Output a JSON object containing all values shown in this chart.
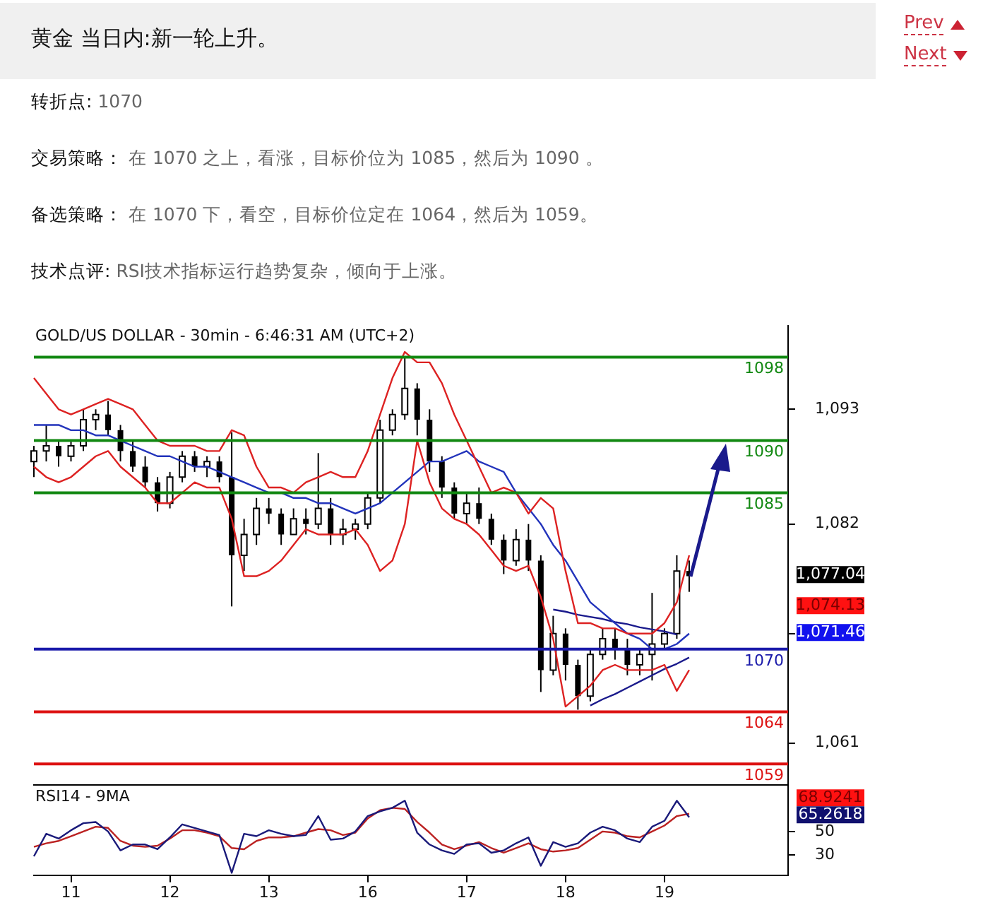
{
  "chart_data": [
    {
      "type": "other",
      "title": "黄金 当日内:新一轮上升。",
      "annotations": [
        "Prev",
        "Next",
        "转折点: 1070",
        "交易策略： 在 1070 之上，看涨，目标价位为 1085，然后为 1090 。",
        "备选策略： 在 1070 下，看空，目标价位定在 1064，然后为 1059。",
        "技术点评: RSI技术指标运行趋势复杂，倾向于上涨。"
      ]
    },
    {
      "type": "candlestick",
      "title": "GOLD/US DOLLAR - 30min - 6:46:31 AM (UTC+2)",
      "categories": [
        null,
        null,
        null,
        "11",
        null,
        null,
        null,
        null,
        null,
        null,
        null,
        "12",
        null,
        null,
        null,
        null,
        null,
        null,
        null,
        "13",
        null,
        null,
        null,
        null,
        null,
        null,
        null,
        "16",
        null,
        null,
        null,
        null,
        null,
        null,
        null,
        "17",
        null,
        null,
        null,
        null,
        null,
        null,
        null,
        "18",
        null,
        null,
        null,
        null,
        null,
        null,
        null,
        "19",
        null,
        null,
        null,
        null,
        null,
        null,
        null,
        null,
        null,
        null
      ],
      "ohlc": [
        [
          1088,
          1089.5,
          1086.5,
          1089
        ],
        [
          1089,
          1091.5,
          1088,
          1089.5
        ],
        [
          1089.5,
          1090,
          1087.5,
          1088.5
        ],
        [
          1088.5,
          1090,
          1088,
          1089.5
        ],
        [
          1089.5,
          1093,
          1089,
          1092
        ],
        [
          1092,
          1093,
          1091,
          1092.5
        ],
        [
          1092.5,
          1093.8,
          1090.5,
          1091
        ],
        [
          1091,
          1091.5,
          1088,
          1089
        ],
        [
          1089,
          1090,
          1087,
          1087.5
        ],
        [
          1087.5,
          1088.5,
          1085.5,
          1086
        ],
        [
          1086,
          1086.5,
          1083.2,
          1084
        ],
        [
          1084,
          1087,
          1083.5,
          1086.5
        ],
        [
          1086.5,
          1089,
          1086,
          1088.5
        ],
        [
          1088.5,
          1089,
          1087,
          1087.5
        ],
        [
          1087.5,
          1088.5,
          1086.5,
          1088
        ],
        [
          1088,
          1088.5,
          1086,
          1086.5
        ],
        [
          1086.5,
          1090.8,
          1074.1,
          1079
        ],
        [
          1079,
          1082.5,
          1077.5,
          1081
        ],
        [
          1081,
          1084.5,
          1080,
          1083.5
        ],
        [
          1083.5,
          1084.5,
          1082,
          1083
        ],
        [
          1083,
          1083.5,
          1080,
          1081
        ],
        [
          1081,
          1083.5,
          1081,
          1082.5
        ],
        [
          1082.5,
          1083.5,
          1081,
          1082
        ],
        [
          1082,
          1088.8,
          1081.5,
          1083.5
        ],
        [
          1083.5,
          1084.5,
          1080,
          1081
        ],
        [
          1081,
          1082.5,
          1080,
          1081.5
        ],
        [
          1081.5,
          1082.5,
          1080.5,
          1082
        ],
        [
          1082,
          1085,
          1081.5,
          1084.5
        ],
        [
          1084.5,
          1092,
          1084,
          1091
        ],
        [
          1091,
          1093,
          1090.5,
          1092.5
        ],
        [
          1092.5,
          1097.9,
          1092,
          1095
        ],
        [
          1095,
          1095.5,
          1090.5,
          1092
        ],
        [
          1092,
          1093,
          1087,
          1088
        ],
        [
          1088,
          1088.5,
          1084.5,
          1085.5
        ],
        [
          1085.5,
          1086,
          1082.5,
          1083
        ],
        [
          1083,
          1085,
          1082,
          1084
        ],
        [
          1084,
          1085.5,
          1082,
          1082.5
        ],
        [
          1082.5,
          1083,
          1080,
          1080.5
        ],
        [
          1080.5,
          1081,
          1077.2,
          1078.5
        ],
        [
          1078.5,
          1081.5,
          1078,
          1080.5
        ],
        [
          1080.5,
          1082,
          1077.5,
          1078.5
        ],
        [
          1078.5,
          1079,
          1065.9,
          1068
        ],
        [
          1068,
          1073.2,
          1067.5,
          1071.5
        ],
        [
          1071.5,
          1072,
          1067,
          1068.5
        ],
        [
          1068.5,
          1069,
          1064.2,
          1065.5
        ],
        [
          1065.5,
          1070,
          1065,
          1069.5
        ],
        [
          1069.5,
          1072,
          1069,
          1071
        ],
        [
          1071,
          1072,
          1069,
          1070
        ],
        [
          1070,
          1071,
          1067.5,
          1068.5
        ],
        [
          1068.5,
          1070,
          1067.5,
          1069.5
        ],
        [
          1069.5,
          1075.4,
          1067,
          1070.5
        ],
        [
          1070.5,
          1072,
          1070,
          1071.5
        ],
        [
          1071.5,
          1079,
          1071,
          1077.5
        ],
        [
          1077.5,
          1078.5,
          1075.5,
          1077
        ],
        null,
        null,
        null,
        null,
        null,
        null,
        null,
        null
      ],
      "series": [
        {
          "type": "line",
          "color": "#dd2222",
          "values": [
            1096,
            1094.5,
            1093,
            1092.5,
            1093,
            1093.5,
            1094,
            1093.5,
            1093,
            1091.5,
            1090,
            1089.5,
            1089.5,
            1089.5,
            1089,
            1089,
            1091,
            1090.5,
            1087.5,
            1085.5,
            1085.5,
            1085,
            1086,
            1086.5,
            1087,
            1086.5,
            1086.5,
            1089,
            1092.5,
            1096,
            1098.5,
            1097.5,
            1097.5,
            1095.5,
            1092.5,
            1090,
            1087.5,
            1085,
            1085.5,
            1085,
            1083,
            1084.5,
            1083.5,
            1077.5,
            1072.5,
            1072.5,
            1072,
            1072,
            1071.5,
            1071.5,
            1071.5,
            1072.5,
            1074.5,
            1079,
            null,
            null,
            null,
            null,
            null,
            null,
            null,
            null
          ]
        },
        {
          "type": "line",
          "color": "#dd2222",
          "values": [
            1087.5,
            1086.5,
            1086,
            1086.5,
            1087.5,
            1088.5,
            1089,
            1087.5,
            1086.5,
            1085.5,
            1084,
            1084,
            1085,
            1086,
            1085.5,
            1085.5,
            1082.5,
            1077,
            1077,
            1077.5,
            1078.5,
            1080,
            1081.5,
            1081,
            1081,
            1081,
            1081.5,
            1080,
            1077.5,
            1078.5,
            1082,
            1090,
            1086,
            1083.5,
            1082.5,
            1082,
            1081,
            1079.5,
            1078,
            1077.5,
            1078,
            1075,
            1071,
            1064.5,
            1065.5,
            1066.5,
            1068,
            1068.5,
            1068,
            1068,
            1068,
            1068.5,
            1066,
            1068,
            null,
            null,
            null,
            null,
            null,
            null,
            null,
            null
          ]
        },
        {
          "type": "line",
          "color": "#2233bb",
          "values": [
            1091.5,
            1091.5,
            1091.5,
            1091,
            1091,
            1090.5,
            1090.5,
            1090,
            1089.5,
            1089,
            1088.5,
            1088.5,
            1088,
            1087.5,
            1087.5,
            1087,
            1086.5,
            1086,
            1085.5,
            1085,
            1085,
            1084.5,
            1084.5,
            1084,
            1084,
            1083.5,
            1083,
            1083.5,
            1084,
            1085,
            1086,
            1087,
            1088,
            1088,
            1088.5,
            1089,
            1088,
            1087.5,
            1087,
            1085,
            1083.5,
            1082,
            1080,
            1078.5,
            1076.5,
            1074.5,
            1073.5,
            1072.5,
            1071.5,
            1071,
            1070,
            1070,
            1070.5,
            1071.5,
            null,
            null,
            null,
            null,
            null,
            null,
            null,
            null
          ]
        },
        {
          "type": "line",
          "color": "#1a1a8c",
          "values": [
            null,
            null,
            null,
            null,
            null,
            null,
            null,
            null,
            null,
            null,
            null,
            null,
            null,
            null,
            null,
            null,
            null,
            null,
            null,
            null,
            null,
            null,
            null,
            null,
            null,
            null,
            null,
            null,
            null,
            null,
            null,
            null,
            null,
            null,
            null,
            null,
            null,
            null,
            null,
            null,
            null,
            null,
            1073.8,
            1073.6,
            1073.3,
            1073.1,
            1072.9,
            1072.6,
            1072.4,
            1072.1,
            1071.9,
            1071.7,
            1071.4,
            null,
            null,
            null,
            null,
            null,
            null,
            null,
            null,
            null
          ]
        },
        {
          "type": "line",
          "color": "#1a1a8c",
          "values": [
            null,
            null,
            null,
            null,
            null,
            null,
            null,
            null,
            null,
            null,
            null,
            null,
            null,
            null,
            null,
            null,
            null,
            null,
            null,
            null,
            null,
            null,
            null,
            null,
            null,
            null,
            null,
            null,
            null,
            null,
            null,
            null,
            null,
            null,
            null,
            null,
            null,
            null,
            null,
            null,
            null,
            null,
            null,
            null,
            null,
            1064.6,
            1065.2,
            1065.7,
            1066.3,
            1066.9,
            1067.5,
            1068.1,
            1068.6,
            1069.2,
            null,
            null,
            null,
            null,
            null,
            null,
            null,
            null
          ]
        }
      ],
      "ylim": [
        1057,
        1101
      ],
      "yticks": [
        {
          "value": 1061,
          "label": "1,061"
        },
        {
          "value": 1071.5,
          "label": null
        },
        {
          "value": 1082,
          "label": "1,082"
        },
        {
          "value": 1093,
          "label": "1,093"
        }
      ],
      "tick_labels": "y",
      "ref_lines": [
        {
          "axis": "y",
          "value": 1098,
          "label": "1098",
          "color": "#118811"
        },
        {
          "axis": "y",
          "value": 1090,
          "label": "1090",
          "color": "#118811"
        },
        {
          "axis": "y",
          "value": 1085,
          "label": "1085",
          "color": "#118811"
        },
        {
          "axis": "y",
          "value": 1070,
          "label": "1070",
          "color": "#1a1aaa"
        },
        {
          "axis": "y",
          "value": 1064,
          "label": "1064",
          "color": "#dd1111"
        },
        {
          "axis": "y",
          "value": 1059,
          "label": "1059",
          "color": "#dd1111"
        }
      ],
      "annotations": [
        "1,077.04",
        "1,074.13",
        "1,071.46"
      ]
    },
    {
      "type": "line",
      "title": "RSI14 - 9MA",
      "categories": [
        null,
        null,
        null,
        "11",
        null,
        null,
        null,
        null,
        null,
        null,
        null,
        "12",
        null,
        null,
        null,
        null,
        null,
        null,
        null,
        "13",
        null,
        null,
        null,
        null,
        null,
        null,
        null,
        "16",
        null,
        null,
        null,
        null,
        null,
        null,
        null,
        "17",
        null,
        null,
        null,
        null,
        null,
        null,
        null,
        "18",
        null,
        null,
        null,
        null,
        null,
        null,
        null,
        "19",
        null,
        null,
        null,
        null,
        null,
        null,
        null,
        null,
        null,
        null
      ],
      "series": [
        {
          "type": "line",
          "color": "#1a1a7a",
          "values": [
            29,
            48,
            44,
            51,
            57,
            58,
            50,
            34,
            39,
            39,
            35,
            45,
            56,
            53,
            50,
            47,
            15,
            48,
            46,
            51,
            48,
            46,
            47,
            63,
            43,
            44,
            50,
            63,
            67,
            70,
            76,
            49,
            39,
            34,
            31,
            39,
            40,
            32,
            34,
            40,
            45,
            21,
            41,
            37,
            40,
            49,
            54,
            51,
            44,
            41,
            54,
            59,
            76,
            62,
            null,
            null,
            null,
            null,
            null,
            null,
            null,
            null
          ]
        },
        {
          "type": "line",
          "color": "#bb2222",
          "values": [
            37,
            40,
            42,
            46,
            50,
            54,
            53,
            42,
            38,
            37,
            38,
            44,
            51,
            51,
            49,
            46,
            36,
            35,
            42,
            45,
            45,
            46,
            49,
            52,
            51,
            47,
            49,
            61,
            68,
            70,
            69,
            58,
            49,
            39,
            35,
            38,
            41,
            36,
            32,
            36,
            40,
            35,
            33,
            34,
            36,
            43,
            50,
            49,
            46,
            45,
            50,
            55,
            63,
            65,
            null,
            null,
            null,
            null,
            null,
            null,
            null,
            null
          ]
        }
      ],
      "ylim": [
        13,
        88
      ],
      "yticks": [
        30,
        50
      ],
      "annotations": [
        "68.9241",
        "65.2618"
      ]
    }
  ]
}
